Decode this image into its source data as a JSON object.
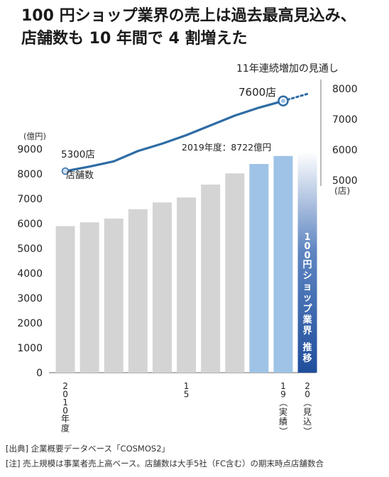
{
  "title_lines": [
    "100 円ショップ業界の売上は過去最高見込み、",
    "店舗数も 10 年間で 4 割増えた"
  ],
  "chart_data": {
    "type": "bar+line",
    "bars": {
      "unit": "(億円)",
      "yticks": [
        "0",
        "1000",
        "2000",
        "3000",
        "4000",
        "5000",
        "6000",
        "7000",
        "8000",
        "9000"
      ],
      "ylim": [
        0,
        9000
      ],
      "values": [
        5900,
        6050,
        6200,
        6580,
        6850,
        7050,
        7570,
        8020,
        8400,
        8722,
        8900
      ],
      "highlight": [
        false,
        false,
        false,
        false,
        false,
        false,
        false,
        false,
        true,
        true,
        false
      ],
      "forecast_index": 10,
      "forecast_label": "100円ショップ業界 推移",
      "callout": "2019年度：8722億円",
      "colors": {
        "normal": "#d4d4d4",
        "highlight": "#9fc3e6",
        "forecast_top": "#ffffff",
        "forecast_bottom": "#1f4e9c"
      }
    },
    "line": {
      "unit": "(店)",
      "yticks": [
        "5000",
        "6000",
        "7000",
        "8000"
      ],
      "ylim": [
        5000,
        8000
      ],
      "values": [
        5300,
        5450,
        5620,
        5960,
        6200,
        6480,
        6800,
        7120,
        7380,
        7600,
        7830
      ],
      "forecast_from": 9,
      "start_label": "5300店",
      "start_sublabel": "店舗数",
      "end_label": "7600店",
      "header": "11年連続増加の見通し",
      "color": "#2e6ca4"
    },
    "xlabels": [
      {
        "index": 0,
        "text": "2010年度"
      },
      {
        "index": 5,
        "text": "15"
      },
      {
        "index": 9,
        "text": "19（実績）"
      },
      {
        "index": 10,
        "text": "20（見込）"
      }
    ]
  },
  "notes": [
    "[出典] 企業概要データベース「COSMOS2」",
    "[注] 売上規模は事業者売上高ベース。店舗数は大手5社（FC含む）の期末時点店舗数合"
  ]
}
